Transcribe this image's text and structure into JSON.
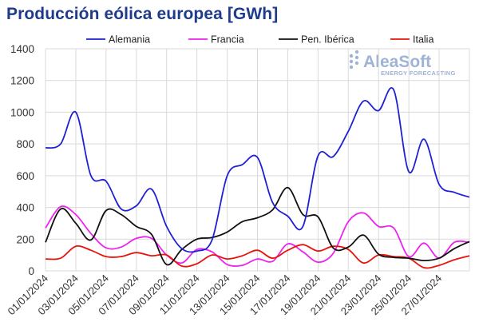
{
  "chart_data": {
    "type": "line",
    "title": "Producción eólica europea [GWh]",
    "xlabel": "",
    "ylabel": "",
    "ylim": [
      0,
      1400
    ],
    "yticks": [
      0,
      200,
      400,
      600,
      800,
      1000,
      1200,
      1400
    ],
    "x_start": "01/01/2024",
    "x_end": "29/01/2024",
    "xtick_labels": [
      "01/01/2024",
      "03/01/2024",
      "05/01/2024",
      "07/01/2024",
      "09/01/2024",
      "11/01/2024",
      "13/01/2024",
      "15/01/2024",
      "17/01/2024",
      "19/01/2024",
      "21/01/2024",
      "23/01/2024",
      "25/01/2024",
      "27/01/2024"
    ],
    "grid": true,
    "legend_position": "top",
    "logo": {
      "name": "AleaSoft",
      "tagline": "ENERGY FORECASTING"
    },
    "series": [
      {
        "name": "Alemania",
        "color": "#1f1fd6",
        "points": [
          [
            "01/01/2024",
            775
          ],
          [
            "02/01/2024",
            800
          ],
          [
            "03/01/2024",
            1000
          ],
          [
            "04/01/2024",
            600
          ],
          [
            "05/01/2024",
            565
          ],
          [
            "06/01/2024",
            390
          ],
          [
            "07/01/2024",
            410
          ],
          [
            "08/01/2024",
            515
          ],
          [
            "09/01/2024",
            280
          ],
          [
            "10/01/2024",
            140
          ],
          [
            "11/01/2024",
            125
          ],
          [
            "12/01/2024",
            195
          ],
          [
            "13/01/2024",
            600
          ],
          [
            "14/01/2024",
            670
          ],
          [
            "15/01/2024",
            715
          ],
          [
            "16/01/2024",
            430
          ],
          [
            "17/01/2024",
            345
          ],
          [
            "18/01/2024",
            280
          ],
          [
            "19/01/2024",
            725
          ],
          [
            "20/01/2024",
            720
          ],
          [
            "21/01/2024",
            880
          ],
          [
            "22/01/2024",
            1070
          ],
          [
            "23/01/2024",
            1010
          ],
          [
            "24/01/2024",
            1140
          ],
          [
            "25/01/2024",
            625
          ],
          [
            "26/01/2024",
            830
          ],
          [
            "27/01/2024",
            545
          ],
          [
            "28/01/2024",
            495
          ],
          [
            "29/01/2024",
            465
          ]
        ]
      },
      {
        "name": "Francia",
        "color": "#ee22ee",
        "points": [
          [
            "01/01/2024",
            270
          ],
          [
            "02/01/2024",
            405
          ],
          [
            "03/01/2024",
            355
          ],
          [
            "04/01/2024",
            235
          ],
          [
            "05/01/2024",
            145
          ],
          [
            "06/01/2024",
            150
          ],
          [
            "07/01/2024",
            205
          ],
          [
            "08/01/2024",
            205
          ],
          [
            "09/01/2024",
            100
          ],
          [
            "10/01/2024",
            50
          ],
          [
            "11/01/2024",
            135
          ],
          [
            "12/01/2024",
            120
          ],
          [
            "13/01/2024",
            40
          ],
          [
            "14/01/2024",
            35
          ],
          [
            "15/01/2024",
            75
          ],
          [
            "16/01/2024",
            60
          ],
          [
            "17/01/2024",
            170
          ],
          [
            "18/01/2024",
            120
          ],
          [
            "19/01/2024",
            55
          ],
          [
            "20/01/2024",
            110
          ],
          [
            "21/01/2024",
            310
          ],
          [
            "22/01/2024",
            365
          ],
          [
            "23/01/2024",
            280
          ],
          [
            "24/01/2024",
            270
          ],
          [
            "25/01/2024",
            90
          ],
          [
            "26/01/2024",
            175
          ],
          [
            "27/01/2024",
            80
          ],
          [
            "28/01/2024",
            180
          ],
          [
            "29/01/2024",
            180
          ]
        ]
      },
      {
        "name": "Pen. Ibérica",
        "color": "#111111",
        "points": [
          [
            "01/01/2024",
            180
          ],
          [
            "02/01/2024",
            390
          ],
          [
            "03/01/2024",
            300
          ],
          [
            "04/01/2024",
            195
          ],
          [
            "05/01/2024",
            380
          ],
          [
            "06/01/2024",
            355
          ],
          [
            "07/01/2024",
            280
          ],
          [
            "08/01/2024",
            230
          ],
          [
            "09/01/2024",
            40
          ],
          [
            "10/01/2024",
            135
          ],
          [
            "11/01/2024",
            200
          ],
          [
            "12/01/2024",
            210
          ],
          [
            "13/01/2024",
            245
          ],
          [
            "14/01/2024",
            310
          ],
          [
            "15/01/2024",
            335
          ],
          [
            "16/01/2024",
            385
          ],
          [
            "17/01/2024",
            525
          ],
          [
            "18/01/2024",
            355
          ],
          [
            "19/01/2024",
            340
          ],
          [
            "20/01/2024",
            145
          ],
          [
            "21/01/2024",
            150
          ],
          [
            "22/01/2024",
            225
          ],
          [
            "23/01/2024",
            105
          ],
          [
            "24/01/2024",
            85
          ],
          [
            "25/01/2024",
            80
          ],
          [
            "26/01/2024",
            65
          ],
          [
            "27/01/2024",
            80
          ],
          [
            "28/01/2024",
            140
          ],
          [
            "29/01/2024",
            185
          ]
        ]
      },
      {
        "name": "Italia",
        "color": "#e8130c",
        "points": [
          [
            "01/01/2024",
            75
          ],
          [
            "02/01/2024",
            80
          ],
          [
            "03/01/2024",
            155
          ],
          [
            "04/01/2024",
            130
          ],
          [
            "05/01/2024",
            90
          ],
          [
            "06/01/2024",
            90
          ],
          [
            "07/01/2024",
            115
          ],
          [
            "08/01/2024",
            95
          ],
          [
            "09/01/2024",
            100
          ],
          [
            "10/01/2024",
            30
          ],
          [
            "11/01/2024",
            45
          ],
          [
            "12/01/2024",
            100
          ],
          [
            "13/01/2024",
            75
          ],
          [
            "14/01/2024",
            95
          ],
          [
            "15/01/2024",
            130
          ],
          [
            "16/01/2024",
            80
          ],
          [
            "17/01/2024",
            130
          ],
          [
            "18/01/2024",
            165
          ],
          [
            "19/01/2024",
            125
          ],
          [
            "20/01/2024",
            155
          ],
          [
            "21/01/2024",
            135
          ],
          [
            "22/01/2024",
            50
          ],
          [
            "23/01/2024",
            100
          ],
          [
            "24/01/2024",
            90
          ],
          [
            "25/01/2024",
            80
          ],
          [
            "26/01/2024",
            20
          ],
          [
            "27/01/2024",
            35
          ],
          [
            "28/01/2024",
            70
          ],
          [
            "29/01/2024",
            95
          ]
        ]
      }
    ]
  }
}
